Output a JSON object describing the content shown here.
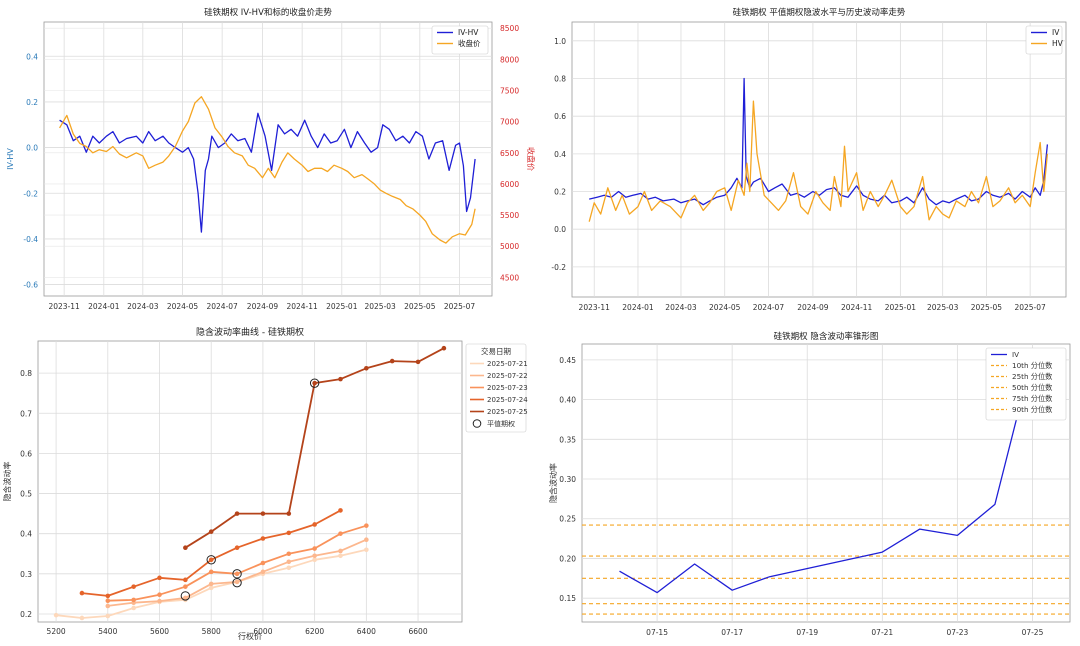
{
  "chart_data": [
    {
      "type": "line",
      "title": "硅铁期权 IV-HV和标的收盘价走势",
      "ylabel": "IV-HV",
      "y2label": "收盘价",
      "ylim": [
        -0.65,
        0.55
      ],
      "y2lim": [
        4200,
        8600
      ],
      "yticks": [
        "-0.6",
        "-0.4",
        "-0.2",
        "0.0",
        "0.2",
        "0.4"
      ],
      "y2ticks": [
        "4500",
        "5000",
        "5500",
        "6000",
        "6500",
        "7000",
        "7500",
        "8000",
        "8500"
      ],
      "xticks": [
        "2023-11",
        "2024-01",
        "2024-03",
        "2024-05",
        "2024-07",
        "2024-09",
        "2024-11",
        "2025-01",
        "2025-03",
        "2025-05",
        "2025-07"
      ],
      "x_range": [
        "2023-10-01",
        "2025-08-20"
      ],
      "grid": true,
      "legend_position": "top-right",
      "legend": [
        "IV-HV",
        "收盘价"
      ],
      "series": [
        {
          "name": "IV-HV",
          "axis": "left",
          "color": "#1f1fd6",
          "x": [
            "2023-10-25",
            "2023-11-05",
            "2023-11-15",
            "2023-11-25",
            "2023-12-05",
            "2023-12-15",
            "2023-12-25",
            "2024-01-05",
            "2024-01-15",
            "2024-01-25",
            "2024-02-05",
            "2024-02-20",
            "2024-03-01",
            "2024-03-10",
            "2024-03-20",
            "2024-04-01",
            "2024-04-10",
            "2024-04-20",
            "2024-05-01",
            "2024-05-10",
            "2024-05-18",
            "2024-05-25",
            "2024-05-30",
            "2024-06-05",
            "2024-06-10",
            "2024-06-15",
            "2024-06-25",
            "2024-07-05",
            "2024-07-15",
            "2024-07-25",
            "2024-08-05",
            "2024-08-15",
            "2024-08-25",
            "2024-09-05",
            "2024-09-15",
            "2024-09-25",
            "2024-10-05",
            "2024-10-15",
            "2024-10-25",
            "2024-11-05",
            "2024-11-15",
            "2024-11-25",
            "2024-12-05",
            "2024-12-15",
            "2024-12-25",
            "2025-01-05",
            "2025-01-15",
            "2025-01-25",
            "2025-02-05",
            "2025-02-15",
            "2025-02-25",
            "2025-03-05",
            "2025-03-15",
            "2025-03-25",
            "2025-04-05",
            "2025-04-15",
            "2025-04-25",
            "2025-05-05",
            "2025-05-15",
            "2025-05-25",
            "2025-06-05",
            "2025-06-15",
            "2025-06-25",
            "2025-07-01",
            "2025-07-07",
            "2025-07-12",
            "2025-07-18",
            "2025-07-25"
          ],
          "y": [
            0.12,
            0.1,
            0.03,
            0.05,
            -0.02,
            0.05,
            0.02,
            0.05,
            0.07,
            0.02,
            0.04,
            0.05,
            0.02,
            0.07,
            0.03,
            0.05,
            0.02,
            0.0,
            -0.02,
            0.0,
            -0.05,
            -0.2,
            -0.37,
            -0.1,
            -0.05,
            0.05,
            0.0,
            0.02,
            0.06,
            0.03,
            0.04,
            -0.02,
            0.15,
            0.05,
            -0.1,
            0.1,
            0.06,
            0.08,
            0.05,
            0.12,
            0.05,
            0.0,
            0.06,
            0.02,
            0.03,
            0.08,
            0.0,
            0.07,
            0.02,
            -0.02,
            0.0,
            0.1,
            0.08,
            0.03,
            0.05,
            0.02,
            0.07,
            0.05,
            -0.05,
            0.02,
            0.03,
            -0.1,
            0.01,
            0.02,
            -0.08,
            -0.28,
            -0.22,
            -0.05
          ]
        },
        {
          "name": "收盘价",
          "axis": "right",
          "color": "#f5a623",
          "x": [
            "2023-10-25",
            "2023-11-05",
            "2023-11-15",
            "2023-11-25",
            "2023-12-05",
            "2023-12-15",
            "2023-12-25",
            "2024-01-05",
            "2024-01-15",
            "2024-01-25",
            "2024-02-05",
            "2024-02-20",
            "2024-03-01",
            "2024-03-10",
            "2024-03-20",
            "2024-04-01",
            "2024-04-10",
            "2024-04-20",
            "2024-05-01",
            "2024-05-10",
            "2024-05-20",
            "2024-05-30",
            "2024-06-10",
            "2024-06-20",
            "2024-07-01",
            "2024-07-10",
            "2024-07-20",
            "2024-08-01",
            "2024-08-10",
            "2024-08-20",
            "2024-09-01",
            "2024-09-10",
            "2024-09-20",
            "2024-10-01",
            "2024-10-10",
            "2024-10-20",
            "2024-11-01",
            "2024-11-10",
            "2024-11-20",
            "2024-12-01",
            "2024-12-10",
            "2024-12-20",
            "2025-01-01",
            "2025-01-10",
            "2025-01-20",
            "2025-02-01",
            "2025-02-10",
            "2025-02-20",
            "2025-03-01",
            "2025-03-10",
            "2025-03-20",
            "2025-04-01",
            "2025-04-10",
            "2025-04-20",
            "2025-05-01",
            "2025-05-10",
            "2025-05-20",
            "2025-06-01",
            "2025-06-10",
            "2025-06-20",
            "2025-07-01",
            "2025-07-10",
            "2025-07-20",
            "2025-07-25"
          ],
          "y": [
            6900,
            7100,
            6800,
            6650,
            6600,
            6500,
            6550,
            6520,
            6600,
            6480,
            6420,
            6500,
            6450,
            6250,
            6300,
            6350,
            6450,
            6600,
            6850,
            7000,
            7300,
            7400,
            7200,
            6900,
            6750,
            6600,
            6500,
            6450,
            6300,
            6250,
            6100,
            6250,
            6100,
            6350,
            6500,
            6400,
            6300,
            6200,
            6250,
            6250,
            6200,
            6300,
            6250,
            6200,
            6100,
            6150,
            6080,
            6000,
            5900,
            5850,
            5800,
            5750,
            5650,
            5600,
            5500,
            5400,
            5200,
            5100,
            5050,
            5150,
            5200,
            5180,
            5350,
            5600
          ]
        }
      ]
    },
    {
      "type": "line",
      "title": "硅铁期权 平值期权隐波水平与历史波动率走势",
      "ylim": [
        -0.36,
        1.1
      ],
      "yticks": [
        "-0.2",
        "0.0",
        "0.2",
        "0.4",
        "0.6",
        "0.8",
        "1.0"
      ],
      "xticks": [
        "2023-11",
        "2024-01",
        "2024-03",
        "2024-05",
        "2024-07",
        "2024-09",
        "2024-11",
        "2025-01",
        "2025-03",
        "2025-05",
        "2025-07"
      ],
      "x_range": [
        "2023-10-01",
        "2025-08-20"
      ],
      "grid": true,
      "legend_position": "top-right",
      "legend": [
        "IV",
        "HV"
      ],
      "series": [
        {
          "name": "IV",
          "color": "#1f1fd6",
          "x": [
            "2023-10-25",
            "2023-11-05",
            "2023-11-15",
            "2023-11-25",
            "2023-12-05",
            "2023-12-15",
            "2023-12-25",
            "2024-01-05",
            "2024-01-15",
            "2024-01-25",
            "2024-02-05",
            "2024-02-20",
            "2024-03-01",
            "2024-03-10",
            "2024-03-20",
            "2024-04-01",
            "2024-04-10",
            "2024-04-20",
            "2024-05-01",
            "2024-05-10",
            "2024-05-18",
            "2024-05-25",
            "2024-05-28",
            "2024-05-31",
            "2024-06-05",
            "2024-06-10",
            "2024-06-20",
            "2024-07-01",
            "2024-07-10",
            "2024-07-20",
            "2024-08-01",
            "2024-08-10",
            "2024-08-20",
            "2024-09-01",
            "2024-09-10",
            "2024-09-20",
            "2024-10-01",
            "2024-10-10",
            "2024-10-20",
            "2024-11-01",
            "2024-11-10",
            "2024-11-20",
            "2024-12-01",
            "2024-12-10",
            "2024-12-20",
            "2025-01-01",
            "2025-01-10",
            "2025-01-20",
            "2025-02-01",
            "2025-02-10",
            "2025-02-20",
            "2025-03-01",
            "2025-03-10",
            "2025-03-20",
            "2025-04-01",
            "2025-04-10",
            "2025-04-20",
            "2025-05-01",
            "2025-05-10",
            "2025-05-20",
            "2025-06-01",
            "2025-06-10",
            "2025-06-20",
            "2025-07-01",
            "2025-07-08",
            "2025-07-15",
            "2025-07-20",
            "2025-07-25"
          ],
          "y": [
            0.16,
            0.17,
            0.18,
            0.17,
            0.2,
            0.17,
            0.18,
            0.19,
            0.16,
            0.17,
            0.15,
            0.16,
            0.14,
            0.15,
            0.16,
            0.13,
            0.15,
            0.17,
            0.18,
            0.22,
            0.27,
            0.22,
            0.8,
            0.28,
            0.22,
            0.25,
            0.27,
            0.2,
            0.22,
            0.24,
            0.18,
            0.19,
            0.17,
            0.2,
            0.18,
            0.21,
            0.22,
            0.18,
            0.17,
            0.23,
            0.18,
            0.16,
            0.15,
            0.18,
            0.14,
            0.15,
            0.17,
            0.14,
            0.22,
            0.16,
            0.13,
            0.15,
            0.14,
            0.16,
            0.18,
            0.15,
            0.16,
            0.2,
            0.18,
            0.17,
            0.19,
            0.16,
            0.2,
            0.17,
            0.22,
            0.18,
            0.26,
            0.45
          ]
        },
        {
          "name": "HV",
          "color": "#f5a623",
          "x": [
            "2023-10-25",
            "2023-11-01",
            "2023-11-10",
            "2023-11-20",
            "2023-12-01",
            "2023-12-10",
            "2023-12-20",
            "2024-01-01",
            "2024-01-10",
            "2024-01-20",
            "2024-02-01",
            "2024-02-15",
            "2024-03-01",
            "2024-03-10",
            "2024-03-20",
            "2024-04-01",
            "2024-04-10",
            "2024-04-20",
            "2024-05-01",
            "2024-05-10",
            "2024-05-20",
            "2024-05-28",
            "2024-06-01",
            "2024-06-05",
            "2024-06-10",
            "2024-06-15",
            "2024-06-25",
            "2024-07-05",
            "2024-07-15",
            "2024-07-25",
            "2024-08-05",
            "2024-08-15",
            "2024-08-25",
            "2024-09-05",
            "2024-09-15",
            "2024-09-25",
            "2024-10-01",
            "2024-10-10",
            "2024-10-15",
            "2024-10-20",
            "2024-11-01",
            "2024-11-10",
            "2024-11-20",
            "2024-12-01",
            "2024-12-10",
            "2024-12-20",
            "2025-01-01",
            "2025-01-10",
            "2025-01-20",
            "2025-02-01",
            "2025-02-10",
            "2025-02-20",
            "2025-03-01",
            "2025-03-10",
            "2025-03-20",
            "2025-04-01",
            "2025-04-10",
            "2025-04-20",
            "2025-05-01",
            "2025-05-10",
            "2025-05-20",
            "2025-06-01",
            "2025-06-10",
            "2025-06-20",
            "2025-07-01",
            "2025-07-08",
            "2025-07-15",
            "2025-07-20",
            "2025-07-25"
          ],
          "y": [
            0.04,
            0.14,
            0.08,
            0.22,
            0.1,
            0.18,
            0.08,
            0.12,
            0.2,
            0.1,
            0.15,
            0.12,
            0.06,
            0.14,
            0.18,
            0.1,
            0.14,
            0.2,
            0.22,
            0.1,
            0.26,
            0.18,
            0.35,
            0.2,
            0.68,
            0.4,
            0.18,
            0.14,
            0.1,
            0.15,
            0.3,
            0.12,
            0.08,
            0.2,
            0.14,
            0.1,
            0.28,
            0.12,
            0.44,
            0.2,
            0.3,
            0.1,
            0.2,
            0.12,
            0.18,
            0.26,
            0.12,
            0.08,
            0.12,
            0.28,
            0.05,
            0.12,
            0.08,
            0.06,
            0.15,
            0.12,
            0.2,
            0.14,
            0.28,
            0.12,
            0.15,
            0.22,
            0.14,
            0.18,
            0.12,
            0.3,
            0.46,
            0.2,
            0.4
          ]
        }
      ]
    },
    {
      "type": "line",
      "title": "隐含波动率曲线 - 硅铁期权",
      "xlabel": "行权价",
      "ylabel": "隐含波动率",
      "xlim": [
        5130,
        6770
      ],
      "ylim": [
        0.18,
        0.88
      ],
      "xticks": [
        "5200",
        "5400",
        "5600",
        "5800",
        "6000",
        "6200",
        "6400",
        "6600"
      ],
      "yticks": [
        "0.2",
        "0.3",
        "0.4",
        "0.5",
        "0.6",
        "0.7",
        "0.8"
      ],
      "grid": true,
      "legend_position": "outside-top-right",
      "legend_title": "交易日期",
      "atm_label": "平值期权",
      "series": [
        {
          "name": "2025-07-21",
          "color": "#fdd8bb",
          "x": [
            5200,
            5300,
            5400,
            5500,
            5600,
            5700,
            5800,
            5900,
            6000,
            6100,
            6200,
            6300,
            6400
          ],
          "y": [
            0.197,
            0.19,
            0.195,
            0.215,
            0.23,
            0.235,
            0.265,
            0.28,
            0.3,
            0.315,
            0.335,
            0.345,
            0.36
          ]
        },
        {
          "name": "2025-07-22",
          "color": "#fcb78e",
          "x": [
            5400,
            5500,
            5600,
            5700,
            5800,
            5900,
            6000,
            6100,
            6200,
            6300,
            6400
          ],
          "y": [
            0.22,
            0.228,
            0.232,
            0.24,
            0.275,
            0.28,
            0.305,
            0.33,
            0.345,
            0.357,
            0.385
          ]
        },
        {
          "name": "2025-07-23",
          "color": "#f9925b",
          "x": [
            5400,
            5500,
            5600,
            5700,
            5800,
            5900,
            6000,
            6100,
            6200,
            6300,
            6400
          ],
          "y": [
            0.233,
            0.235,
            0.248,
            0.268,
            0.305,
            0.3,
            0.327,
            0.35,
            0.363,
            0.4,
            0.42
          ]
        },
        {
          "name": "2025-07-24",
          "color": "#e5642a",
          "x": [
            5300,
            5400,
            5500,
            5600,
            5700,
            5800,
            5900,
            6000,
            6100,
            6200,
            6300
          ],
          "y": [
            0.252,
            0.245,
            0.268,
            0.29,
            0.285,
            0.335,
            0.365,
            0.388,
            0.402,
            0.423,
            0.458
          ]
        },
        {
          "name": "2025-07-25",
          "color": "#b4431a",
          "x": [
            5700,
            5800,
            5900,
            6000,
            6100,
            6200,
            6300,
            6400,
            6500,
            6600,
            6700
          ],
          "y": [
            0.365,
            0.405,
            0.45,
            0.45,
            0.45,
            0.775,
            0.785,
            0.812,
            0.83,
            0.828,
            0.862
          ]
        }
      ],
      "atm_points": [
        {
          "x": 5700,
          "y": 0.245
        },
        {
          "x": 5800,
          "y": 0.335
        },
        {
          "x": 5900,
          "y": 0.278
        },
        {
          "x": 5900,
          "y": 0.3
        },
        {
          "x": 6200,
          "y": 0.775
        }
      ]
    },
    {
      "type": "line",
      "title": "硅铁期权 隐含波动率锥形图",
      "ylabel": "隐含波动率",
      "ylim": [
        0.12,
        0.47
      ],
      "x_range": [
        "2025-07-13",
        "2025-07-26"
      ],
      "xticks": [
        "07-15",
        "07-17",
        "07-19",
        "07-21",
        "07-23",
        "07-25"
      ],
      "yticks": [
        "0.15",
        "0.20",
        "0.25",
        "0.30",
        "0.35",
        "0.40",
        "0.45"
      ],
      "grid": true,
      "legend_position": "top-right",
      "series": [
        {
          "name": "IV",
          "color": "#1f1fd6",
          "x": [
            "2025-07-14",
            "2025-07-15",
            "2025-07-16",
            "2025-07-17",
            "2025-07-18",
            "2025-07-21",
            "2025-07-22",
            "2025-07-23",
            "2025-07-24",
            "2025-07-25"
          ],
          "y": [
            0.184,
            0.157,
            0.193,
            0.16,
            0.177,
            0.208,
            0.237,
            0.229,
            0.268,
            0.455
          ]
        }
      ],
      "percentiles": [
        {
          "name": "10th  分位数",
          "value": 0.13
        },
        {
          "name": "25th  分位数",
          "value": 0.143
        },
        {
          "name": "50th  分位数",
          "value": 0.175
        },
        {
          "name": "75th  分位数",
          "value": 0.203
        },
        {
          "name": "90th  分位数",
          "value": 0.242
        }
      ]
    }
  ]
}
